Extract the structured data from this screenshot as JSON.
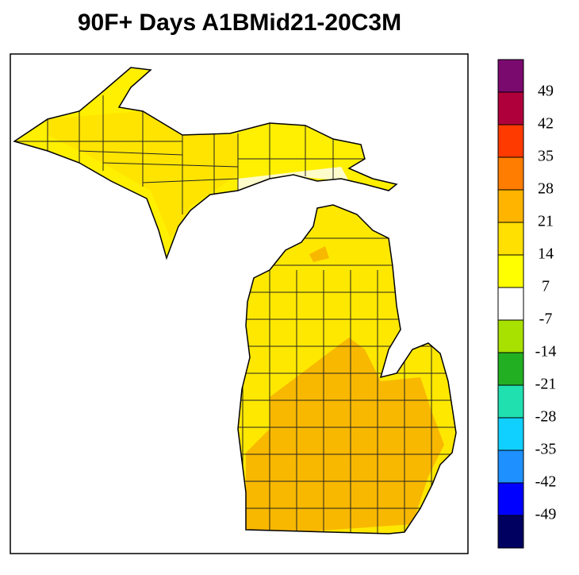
{
  "title": "90F+ Days A1BMid21-20C3M",
  "colorbar": {
    "levels": [
      49,
      42,
      35,
      28,
      21,
      14,
      7,
      -7,
      -14,
      -21,
      -28,
      -35,
      -42,
      -49
    ],
    "colors": [
      "#7a0a6e",
      "#b0003c",
      "#ff3a00",
      "#ff7d00",
      "#ffb400",
      "#ffe000",
      "#ffff00",
      "#ffffff",
      "#a8e000",
      "#22b022",
      "#20e0b0",
      "#10d0ff",
      "#1e90ff",
      "#0000ff",
      "#000060"
    ]
  }
}
